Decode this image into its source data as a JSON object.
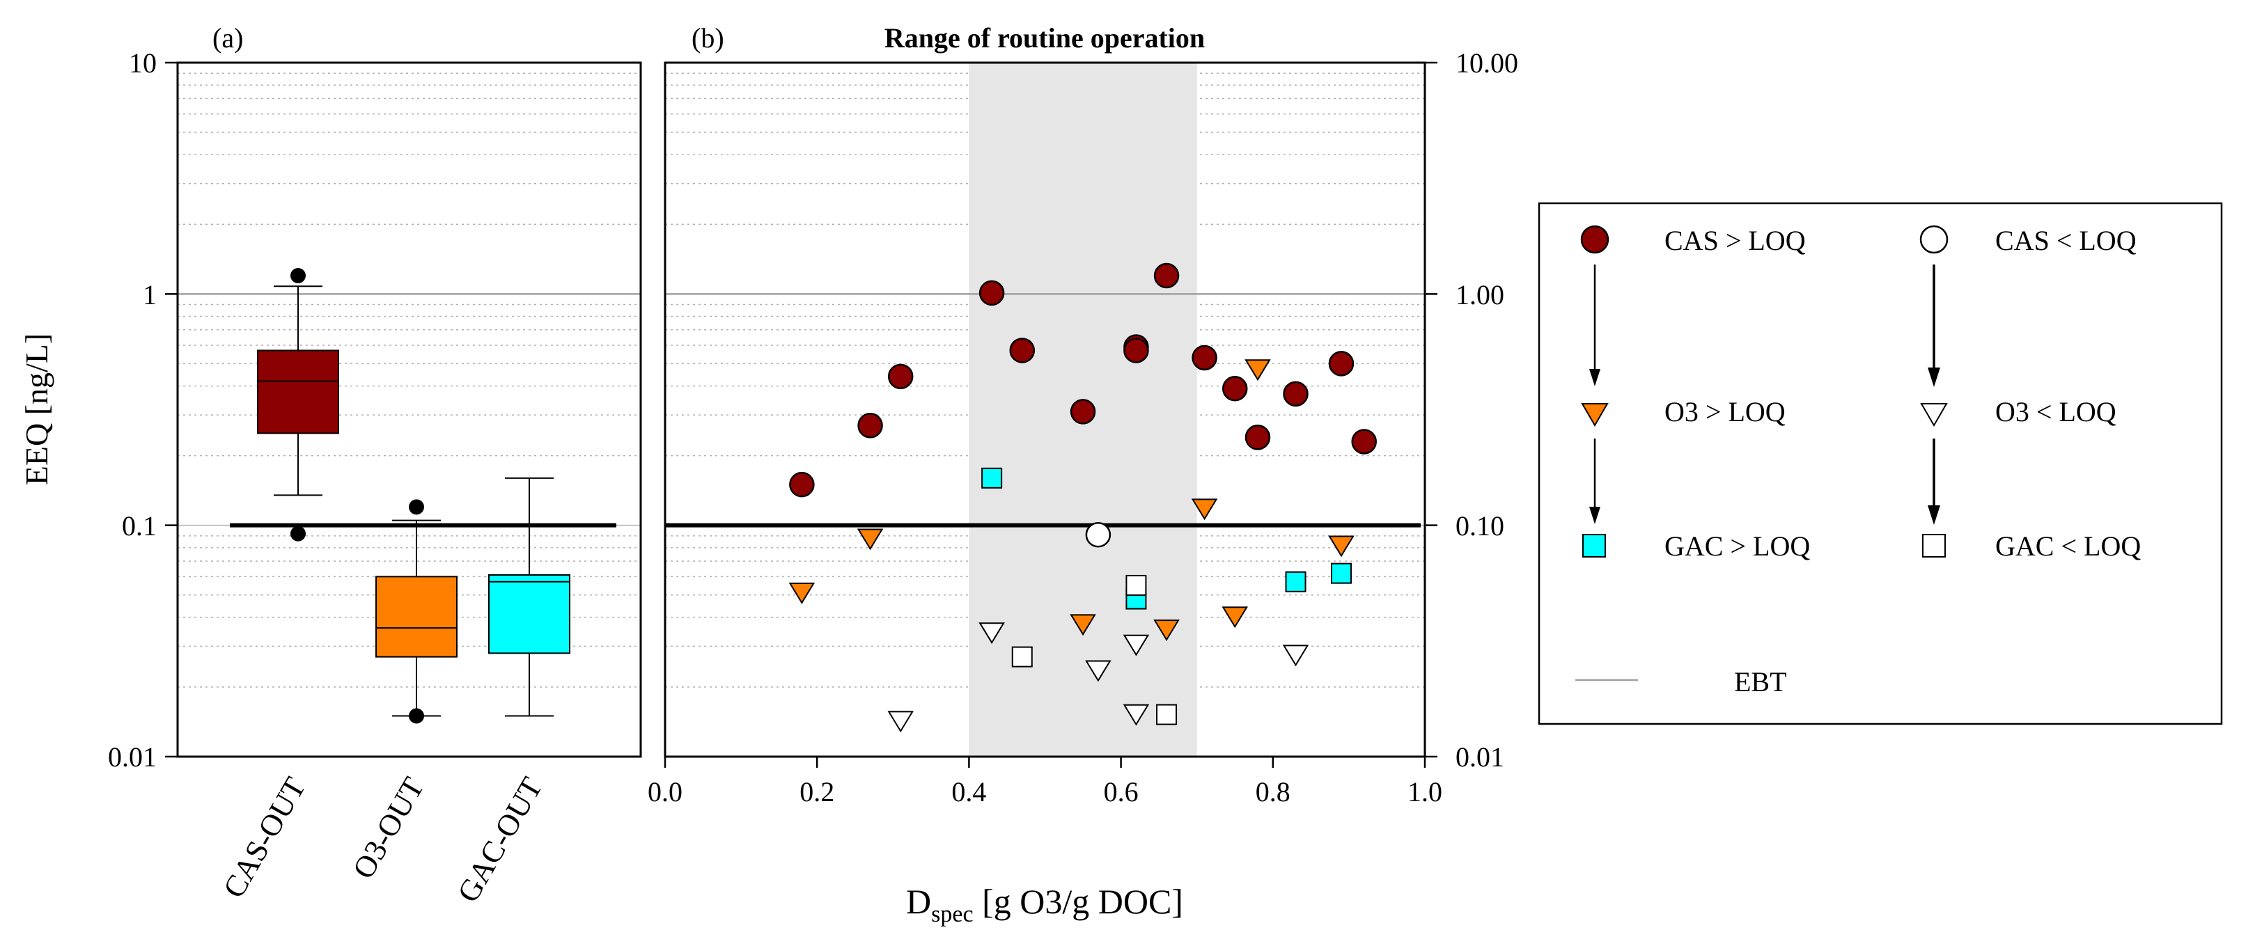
{
  "figure": {
    "panel_a_tag": "(a)",
    "panel_b_tag": "(b)",
    "panel_b_title": "Range of routine operation",
    "ylabel": "EEQ [ng/L]",
    "xlabel_main": "D",
    "xlabel_sub": "spec",
    "xlabel_rest": " [g O3/g DOC]",
    "left_ticks": [
      "10",
      "1",
      "0.1",
      "0.01"
    ],
    "right_ticks": [
      "10.00",
      "1.00",
      "0.10",
      "0.01"
    ],
    "x_ticks": [
      "0.0",
      "0.2",
      "0.4",
      "0.6",
      "0.8",
      "1.0"
    ]
  },
  "legend": {
    "cas_gt": "CAS > LOQ",
    "cas_lt": "CAS < LOQ",
    "o3_gt": "O3 > LOQ",
    "o3_lt": "O3 < LOQ",
    "gac_gt": "GAC > LOQ",
    "gac_lt": "GAC < LOQ",
    "ebt": "EBT"
  },
  "colors": {
    "cas": "#8b0000",
    "o3": "#ff8000",
    "gac": "#00ffff",
    "shade": "#e6e6e6",
    "grid": "#b0b0b0",
    "ebt_line": "#a0a0a0"
  },
  "chart_data": [
    {
      "type": "box",
      "panel": "(a)",
      "yscale": "log",
      "ylim": [
        0.01,
        10
      ],
      "ylabel": "EEQ [ng/L]",
      "loq_line": 0.1,
      "ebt_line": 1,
      "categories": [
        "CAS-OUT",
        "O3-OUT",
        "GAC-OUT"
      ],
      "boxes": [
        {
          "name": "CAS-OUT",
          "q1": 0.25,
          "median": 0.42,
          "q3": 0.57,
          "whisker_low": 0.135,
          "whisker_high": 1.08,
          "outliers": [
            1.2,
            0.092
          ],
          "color": "#8b0000"
        },
        {
          "name": "O3-OUT",
          "q1": 0.027,
          "median": 0.036,
          "q3": 0.06,
          "whisker_low": 0.015,
          "whisker_high": 0.105,
          "outliers": [
            0.12,
            0.015
          ],
          "color": "#ff8000"
        },
        {
          "name": "GAC-OUT",
          "q1": 0.028,
          "median": 0.057,
          "q3": 0.061,
          "whisker_low": 0.015,
          "whisker_high": 0.16,
          "outliers": [],
          "color": "#00ffff"
        }
      ]
    },
    {
      "type": "scatter",
      "panel": "(b)",
      "title": "Range of routine operation",
      "xlabel": "Dspec [g O3/g DOC]",
      "yscale": "log",
      "xlim": [
        0,
        1
      ],
      "ylim": [
        0.01,
        10
      ],
      "shaded_range": [
        0.4,
        0.7
      ],
      "loq_line": 0.1,
      "ebt_line": 1,
      "series": [
        {
          "name": "CAS > LOQ",
          "marker": "circle",
          "filled": true,
          "color": "#8b0000",
          "x": [
            0.18,
            0.27,
            0.31,
            0.43,
            0.47,
            0.55,
            0.62,
            0.62,
            0.66,
            0.71,
            0.75,
            0.78,
            0.83,
            0.89,
            0.92
          ],
          "y": [
            0.15,
            0.27,
            0.44,
            1.01,
            0.57,
            0.31,
            0.59,
            0.57,
            1.2,
            0.53,
            0.39,
            0.24,
            0.37,
            0.5,
            0.23
          ]
        },
        {
          "name": "CAS < LOQ",
          "marker": "circle",
          "filled": false,
          "color": "#ffffff",
          "x": [
            0.57
          ],
          "y": [
            0.091
          ]
        },
        {
          "name": "O3 > LOQ",
          "marker": "triangle-down",
          "filled": true,
          "color": "#ff8000",
          "x": [
            0.18,
            0.27,
            0.55,
            0.66,
            0.71,
            0.75,
            0.78,
            0.89
          ],
          "y": [
            0.052,
            0.089,
            0.038,
            0.036,
            0.12,
            0.041,
            0.48,
            0.083
          ]
        },
        {
          "name": "O3 < LOQ",
          "marker": "triangle-down",
          "filled": false,
          "color": "#ffffff",
          "x": [
            0.31,
            0.43,
            0.57,
            0.62,
            0.62,
            0.83
          ],
          "y": [
            0.0145,
            0.035,
            0.024,
            0.031,
            0.0155,
            0.028
          ]
        },
        {
          "name": "GAC > LOQ",
          "marker": "square",
          "filled": true,
          "color": "#00ffff",
          "x": [
            0.43,
            0.62,
            0.83,
            0.89
          ],
          "y": [
            0.16,
            0.048,
            0.057,
            0.062
          ]
        },
        {
          "name": "GAC < LOQ",
          "marker": "square",
          "filled": false,
          "color": "#ffffff",
          "x": [
            0.47,
            0.62,
            0.66
          ],
          "y": [
            0.027,
            0.055,
            0.0152
          ]
        }
      ]
    }
  ]
}
